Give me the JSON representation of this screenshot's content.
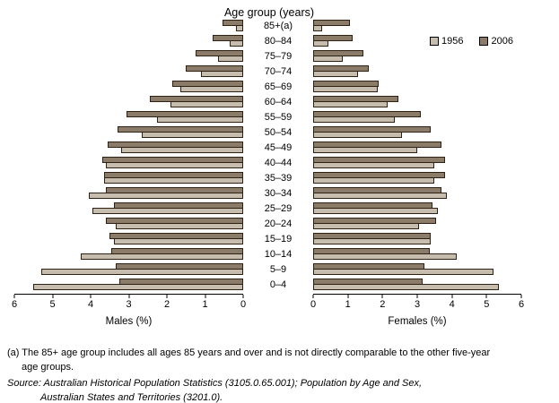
{
  "chart_data": {
    "type": "bar",
    "subtype": "population-pyramid",
    "title": "Age group (years)",
    "categories": [
      "85+(a)",
      "80–84",
      "75–79",
      "70–74",
      "65–69",
      "60–64",
      "55–59",
      "50–54",
      "45–49",
      "40–44",
      "35–39",
      "30–34",
      "25–29",
      "20–24",
      "15–19",
      "10–14",
      "5–9",
      "0–4"
    ],
    "axis_max": 6,
    "grid": false,
    "legend_position": "top-right",
    "male_axis": {
      "label": "Males (%)",
      "ticks": [
        "6",
        "5",
        "4",
        "3",
        "2",
        "1",
        "0"
      ]
    },
    "female_axis": {
      "label": "Females (%)",
      "ticks": [
        "0",
        "1",
        "2",
        "3",
        "4",
        "5",
        "6"
      ]
    },
    "series": [
      {
        "name": "1956",
        "color": "#c7bdae",
        "males": [
          0.2,
          0.35,
          0.65,
          1.1,
          1.65,
          1.9,
          2.25,
          2.65,
          3.2,
          3.6,
          3.65,
          4.05,
          3.95,
          3.35,
          3.4,
          4.25,
          5.3,
          5.5
        ],
        "females": [
          0.25,
          0.45,
          0.85,
          1.3,
          1.85,
          2.15,
          2.35,
          2.55,
          3.0,
          3.5,
          3.5,
          3.85,
          3.6,
          3.05,
          3.4,
          4.15,
          5.2,
          5.35
        ]
      },
      {
        "name": "2006",
        "color": "#8b7c6a",
        "males": [
          0.55,
          0.8,
          1.25,
          1.5,
          1.85,
          2.45,
          3.05,
          3.3,
          3.55,
          3.7,
          3.65,
          3.6,
          3.4,
          3.6,
          3.5,
          3.45,
          3.35,
          3.25
        ],
        "females": [
          1.05,
          1.15,
          1.45,
          1.6,
          1.9,
          2.45,
          3.1,
          3.4,
          3.7,
          3.8,
          3.8,
          3.7,
          3.45,
          3.55,
          3.4,
          3.35,
          3.2,
          3.15
        ]
      }
    ]
  },
  "footnote": {
    "line1": "(a) The 85+ age group includes all ages 85 years and over and is not directly comparable to the other five-year",
    "line2": "age groups."
  },
  "source": {
    "line1": "Source: Australian Historical Population Statistics (3105.0.65.001); Population by Age and Sex,",
    "line2": "Australian States and Territories (3201.0)."
  }
}
